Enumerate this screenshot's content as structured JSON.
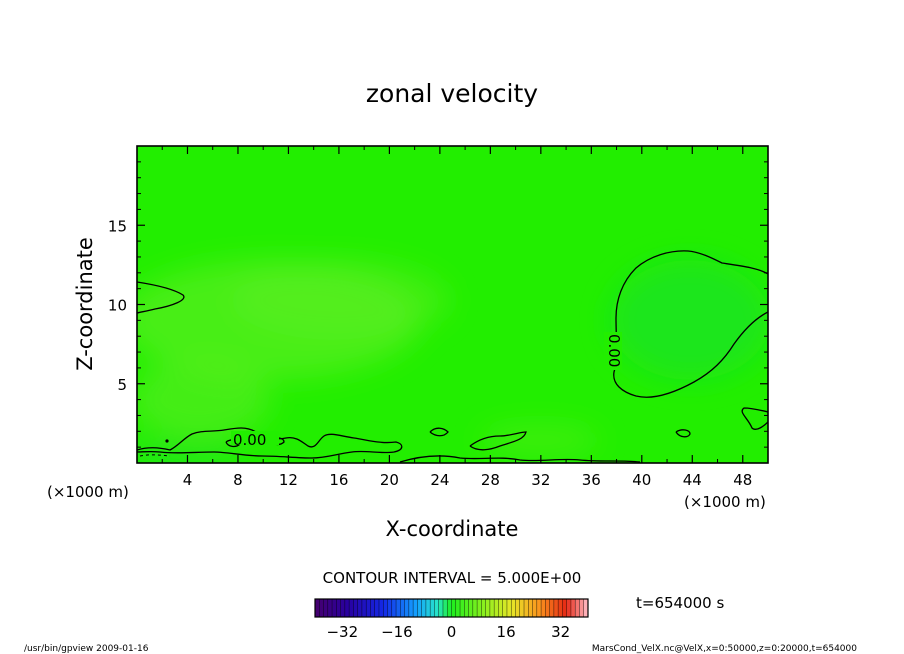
{
  "chart_data": {
    "type": "heatmap",
    "title": "zonal velocity",
    "xlabel": "X-coordinate",
    "ylabel": "Z-coordinate",
    "x_unit_left": "(×1000 m)",
    "x_unit_right": "(×1000 m)",
    "xlim": [
      0,
      50
    ],
    "ylim": [
      0,
      20
    ],
    "x_ticks": [
      4,
      8,
      12,
      16,
      20,
      24,
      28,
      32,
      36,
      40,
      44,
      48
    ],
    "y_ticks": [
      5,
      10,
      15
    ],
    "contour_interval_text": "CONTOUR INTERVAL = 5.000E+00",
    "contour_label": "0.00",
    "time_text": "t=654000 s",
    "colorbar": {
      "range": [
        -40,
        40
      ],
      "ticks": [
        -32,
        -16,
        0,
        16,
        32
      ],
      "colormap": "rainbow"
    },
    "footer_left": "/usr/bin/gpview   2009-01-16",
    "footer_right": "MarsCond_VelX.nc@VelX,x=0:50000,z=0:20000,t=654000",
    "field_colors": {
      "base": "#22ee00",
      "light": "#66ee2a",
      "dark": "#12dd38"
    }
  }
}
